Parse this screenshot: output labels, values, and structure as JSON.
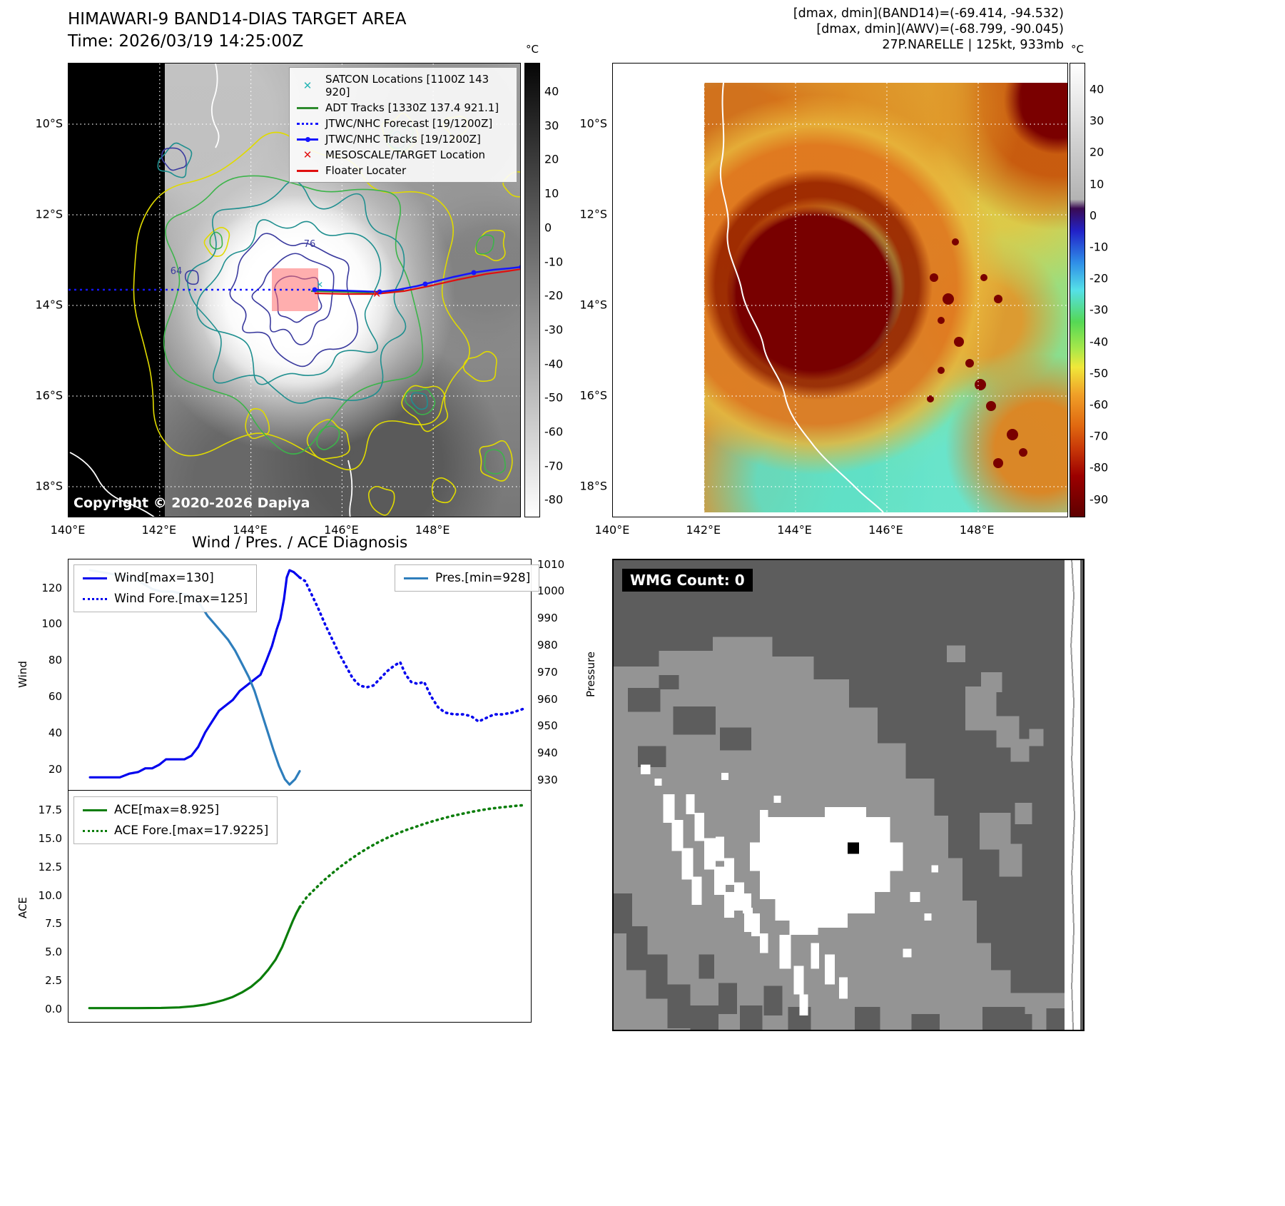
{
  "colors": {
    "wind": "#0000ee",
    "pressure": "#2e7ebc",
    "ace": "#0a7d0a",
    "track_blue": "#1515ff",
    "track_red": "#e01010",
    "adt_green": "#2e8b2e",
    "satcon_teal": "#29b6b6",
    "contour_yellow": "#e0da00",
    "contour_green": "#3cb44a",
    "contour_teal": "#1f8f8f",
    "contour_navy": "#3a3a9e",
    "target_fill": "#ff6b6b",
    "wmg_dark": "#5d5d5d",
    "wmg_medium": "#949494"
  },
  "panel_a": {
    "title": "HIMAWARI-9 BAND14-DIAS TARGET AREA",
    "subtitle": "Time: 2026/03/19 14:25:00Z",
    "copyright": "Copyright © 2020-2026 Dapiya",
    "colorbar_unit": "°C",
    "colorbar_ticks": [
      40,
      30,
      20,
      10,
      0,
      -10,
      -20,
      -30,
      -40,
      -50,
      -60,
      -70,
      -80
    ],
    "x_ticks": [
      "140°E",
      "142°E",
      "144°E",
      "146°E",
      "148°E"
    ],
    "y_ticks": [
      "10°S",
      "12°S",
      "14°S",
      "16°S",
      "18°S"
    ],
    "contour_labels": [
      "64",
      "76"
    ],
    "legend": [
      {
        "symbol": "x-teal",
        "label": "SATCON Locations [1100Z 143 920]"
      },
      {
        "symbol": "line-green",
        "label": "ADT Tracks [1330Z 137.4 921.1]"
      },
      {
        "symbol": "dotted-blue",
        "label": "JTWC/NHC Forecast [19/1200Z]"
      },
      {
        "symbol": "line-dot-blue",
        "label": "JTWC/NHC Tracks [19/1200Z]"
      },
      {
        "symbol": "x-red",
        "label": "MESOSCALE/TARGET Location"
      },
      {
        "symbol": "line-red",
        "label": "Floater Locater"
      }
    ]
  },
  "panel_b": {
    "header_lines": [
      "[dmax, dmin](BAND14)=(-69.414, -94.532)",
      "[dmax, dmin](AWV)=(-68.799, -90.045)",
      "27P.NARELLE | 125kt, 933mb"
    ],
    "colorbar_unit": "°C",
    "colorbar_ticks": [
      40,
      30,
      20,
      10,
      0,
      -10,
      -20,
      -30,
      -40,
      -50,
      -60,
      -70,
      -80,
      -90
    ],
    "x_ticks": [
      "140°E",
      "142°E",
      "144°E",
      "146°E",
      "148°E"
    ],
    "y_ticks": [
      "10°S",
      "12°S",
      "14°S",
      "16°S",
      "18°S"
    ]
  },
  "panel_d": {
    "label": "WMG Count: 0"
  },
  "chart_data": [
    {
      "type": "line",
      "title": "Wind / Pres. / ACE Diagnosis",
      "ylabel_left": "Wind",
      "ylabel_right": "Pressure",
      "y_ticks_left": [
        20,
        40,
        60,
        80,
        100,
        120
      ],
      "y_ticks_right": [
        930,
        940,
        950,
        960,
        970,
        980,
        990,
        1000,
        1010
      ],
      "ylim_left": [
        8,
        136
      ],
      "ylim_right": [
        926,
        1012
      ],
      "grid": false,
      "legend_position": "upper left / upper right",
      "series": [
        {
          "name": "Wind[max=130]",
          "axis": "left",
          "style": "solid",
          "color_key": "wind",
          "points": [
            [
              0.045,
              15
            ],
            [
              0.07,
              15
            ],
            [
              0.09,
              15
            ],
            [
              0.11,
              15
            ],
            [
              0.13,
              17
            ],
            [
              0.15,
              18
            ],
            [
              0.165,
              20
            ],
            [
              0.18,
              20
            ],
            [
              0.195,
              22
            ],
            [
              0.21,
              25
            ],
            [
              0.23,
              25
            ],
            [
              0.25,
              25
            ],
            [
              0.265,
              27
            ],
            [
              0.28,
              32
            ],
            [
              0.295,
              40
            ],
            [
              0.31,
              46
            ],
            [
              0.325,
              52
            ],
            [
              0.34,
              55
            ],
            [
              0.355,
              58
            ],
            [
              0.37,
              63
            ],
            [
              0.385,
              66
            ],
            [
              0.4,
              69
            ],
            [
              0.415,
              72
            ],
            [
              0.428,
              80
            ],
            [
              0.44,
              88
            ],
            [
              0.45,
              97
            ],
            [
              0.458,
              103
            ],
            [
              0.466,
              114
            ],
            [
              0.472,
              126
            ],
            [
              0.478,
              130
            ],
            [
              0.487,
              129
            ],
            [
              0.5,
              126
            ]
          ]
        },
        {
          "name": "Wind Fore.[max=125]",
          "axis": "left",
          "style": "dotted",
          "color_key": "wind",
          "points": [
            [
              0.5,
              126
            ],
            [
              0.512,
              124
            ],
            [
              0.525,
              117
            ],
            [
              0.54,
              109
            ],
            [
              0.555,
              100
            ],
            [
              0.57,
              92
            ],
            [
              0.585,
              84
            ],
            [
              0.6,
              77
            ],
            [
              0.615,
              70
            ],
            [
              0.63,
              66
            ],
            [
              0.645,
              65
            ],
            [
              0.66,
              66
            ],
            [
              0.675,
              70
            ],
            [
              0.69,
              74
            ],
            [
              0.705,
              77
            ],
            [
              0.718,
              79
            ],
            [
              0.73,
              72
            ],
            [
              0.742,
              68
            ],
            [
              0.755,
              67
            ],
            [
              0.77,
              68
            ],
            [
              0.785,
              60
            ],
            [
              0.8,
              54
            ],
            [
              0.815,
              51
            ],
            [
              0.835,
              50
            ],
            [
              0.855,
              50
            ],
            [
              0.872,
              49
            ],
            [
              0.888,
              46
            ],
            [
              0.905,
              48
            ],
            [
              0.922,
              50
            ],
            [
              0.94,
              50
            ],
            [
              0.962,
              51
            ],
            [
              0.985,
              53
            ]
          ]
        },
        {
          "name": "Pres.[min=928]",
          "axis": "right",
          "style": "solid",
          "color_key": "pressure",
          "points": [
            [
              0.045,
              1008
            ],
            [
              0.08,
              1007
            ],
            [
              0.11,
              1006
            ],
            [
              0.14,
              1005
            ],
            [
              0.16,
              1003
            ],
            [
              0.18,
              1001
            ],
            [
              0.2,
              1000
            ],
            [
              0.225,
              1000
            ],
            [
              0.25,
              999
            ],
            [
              0.27,
              998
            ],
            [
              0.285,
              995
            ],
            [
              0.3,
              991
            ],
            [
              0.315,
              988
            ],
            [
              0.33,
              985
            ],
            [
              0.345,
              982
            ],
            [
              0.36,
              978
            ],
            [
              0.375,
              973
            ],
            [
              0.39,
              968
            ],
            [
              0.402,
              963
            ],
            [
              0.415,
              956
            ],
            [
              0.43,
              948
            ],
            [
              0.443,
              941
            ],
            [
              0.455,
              935
            ],
            [
              0.468,
              930
            ],
            [
              0.478,
              928
            ],
            [
              0.49,
              930
            ],
            [
              0.5,
              933
            ]
          ]
        }
      ]
    },
    {
      "type": "line",
      "ylabel_left": "ACE",
      "y_ticks_left": [
        0.0,
        2.5,
        5.0,
        7.5,
        10.0,
        12.5,
        15.0,
        17.5
      ],
      "ylim_left": [
        -1.2,
        19.2
      ],
      "grid": false,
      "series": [
        {
          "name": "ACE[max=8.925]",
          "axis": "left",
          "style": "solid",
          "color_key": "ace",
          "points": [
            [
              0.045,
              0.02
            ],
            [
              0.1,
              0.02
            ],
            [
              0.15,
              0.02
            ],
            [
              0.2,
              0.03
            ],
            [
              0.24,
              0.08
            ],
            [
              0.27,
              0.18
            ],
            [
              0.295,
              0.32
            ],
            [
              0.315,
              0.5
            ],
            [
              0.335,
              0.72
            ],
            [
              0.355,
              1.0
            ],
            [
              0.375,
              1.4
            ],
            [
              0.395,
              1.9
            ],
            [
              0.415,
              2.6
            ],
            [
              0.432,
              3.4
            ],
            [
              0.448,
              4.3
            ],
            [
              0.462,
              5.4
            ],
            [
              0.474,
              6.6
            ],
            [
              0.485,
              7.7
            ],
            [
              0.493,
              8.4
            ],
            [
              0.5,
              8.925
            ]
          ]
        },
        {
          "name": "ACE Fore.[max=17.9225]",
          "axis": "left",
          "style": "dotted",
          "color_key": "ace",
          "points": [
            [
              0.5,
              8.925
            ],
            [
              0.515,
              9.8
            ],
            [
              0.53,
              10.4
            ],
            [
              0.55,
              11.2
            ],
            [
              0.57,
              11.9
            ],
            [
              0.59,
              12.55
            ],
            [
              0.61,
              13.15
            ],
            [
              0.63,
              13.7
            ],
            [
              0.65,
              14.2
            ],
            [
              0.67,
              14.65
            ],
            [
              0.69,
              15.05
            ],
            [
              0.71,
              15.4
            ],
            [
              0.73,
              15.72
            ],
            [
              0.75,
              16.0
            ],
            [
              0.77,
              16.28
            ],
            [
              0.79,
              16.53
            ],
            [
              0.81,
              16.76
            ],
            [
              0.83,
              16.97
            ],
            [
              0.85,
              17.15
            ],
            [
              0.87,
              17.32
            ],
            [
              0.89,
              17.47
            ],
            [
              0.91,
              17.6
            ],
            [
              0.93,
              17.7
            ],
            [
              0.95,
              17.79
            ],
            [
              0.968,
              17.86
            ],
            [
              0.985,
              17.9225
            ]
          ]
        }
      ]
    }
  ]
}
